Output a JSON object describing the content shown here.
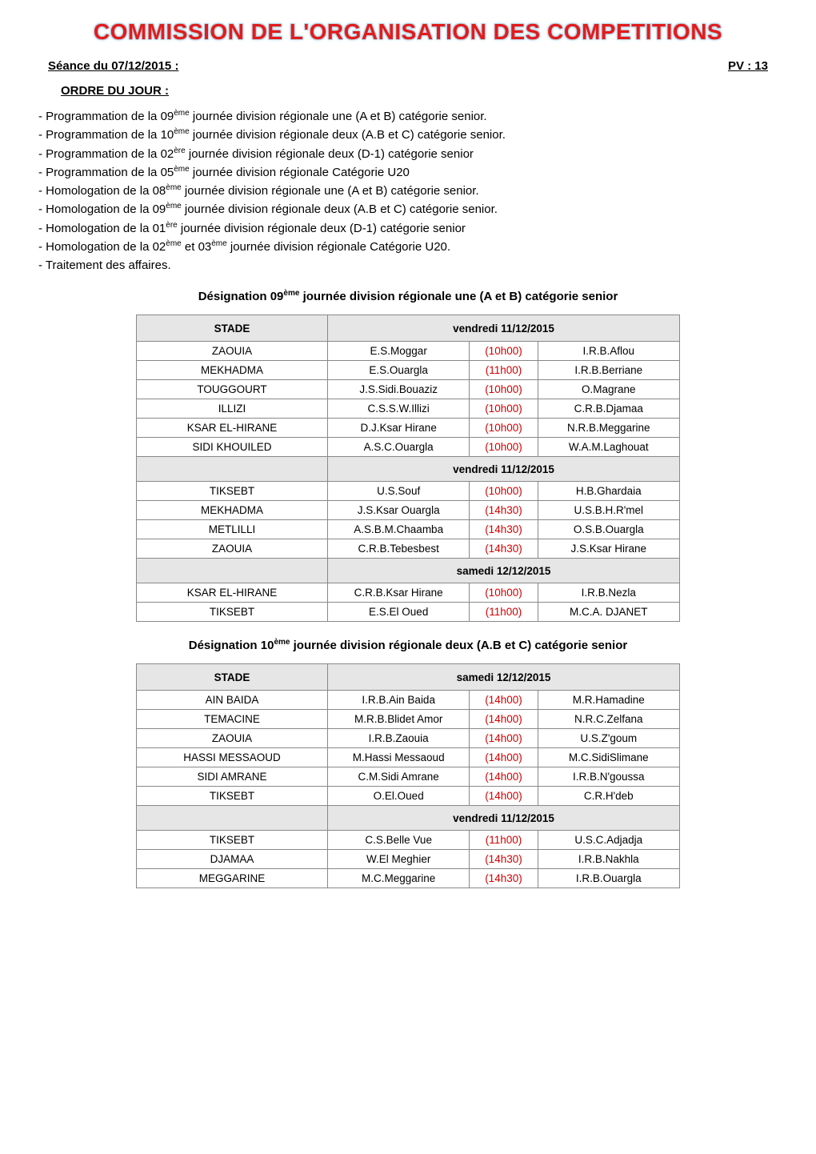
{
  "banner": "COMMISSION DE L'ORGANISATION DES COMPETITIONS",
  "seance_label": "Séance du 07/12/2015 :",
  "pv_label": "PV : 13",
  "ordre_label": "ORDRE DU JOUR :",
  "bullets": [
    "- Programmation de la 09<sup>ème</sup> journée division régionale une (A et B) catégorie senior.",
    "- Programmation de la 10<sup>ème</sup>  journée division régionale deux (A.B et C) catégorie senior.",
    "- Programmation de la 02<sup>ère</sup>  journée division régionale deux (D-1) catégorie senior",
    "- Programmation de la 05<sup>ème</sup>  journée division régionale Catégorie U20",
    "- Homologation de la 08<sup>ème</sup>  journée division régionale une (A et B) catégorie senior.",
    "- Homologation de la 09<sup>ème</sup>  journée division régionale deux (A.B et C) catégorie senior.",
    "- Homologation de la 01<sup>ère</sup>  journée division régionale deux (D-1) catégorie senior",
    "- Homologation de la 02<sup>ème</sup>  et 03<sup>ème</sup> journée division régionale Catégorie U20.",
    "- Traitement des affaires."
  ],
  "section1": {
    "heading": "Désignation 09<sup>ème</sup> journée division régionale une (A et B) catégorie senior",
    "stade_header": "STADE",
    "blocks": [
      {
        "date": "vendredi 11/12/2015",
        "rows": [
          [
            "ZAOUIA",
            "E.S.Moggar",
            "(10h00)",
            "I.R.B.Aflou"
          ],
          [
            "MEKHADMA",
            "E.S.Ouargla",
            "(11h00)",
            "I.R.B.Berriane"
          ],
          [
            "TOUGGOURT",
            "J.S.Sidi.Bouaziz",
            "(10h00)",
            "O.Magrane"
          ],
          [
            "ILLIZI",
            "C.S.S.W.Illizi",
            "(10h00)",
            "C.R.B.Djamaa"
          ],
          [
            "KSAR EL-HIRANE",
            "D.J.Ksar Hirane",
            "(10h00)",
            "N.R.B.Meggarine"
          ],
          [
            "SIDI KHOUILED",
            "A.S.C.Ouargla",
            "(10h00)",
            "W.A.M.Laghouat"
          ]
        ]
      },
      {
        "date": "vendredi 11/12/2015",
        "rows": [
          [
            "TIKSEBT",
            "U.S.Souf",
            "(10h00)",
            "H.B.Ghardaia"
          ],
          [
            "MEKHADMA",
            "J.S.Ksar Ouargla",
            "(14h30)",
            "U.S.B.H.R'mel"
          ],
          [
            "METLILLI",
            "A.S.B.M.Chaamba",
            "(14h30)",
            "O.S.B.Ouargla"
          ],
          [
            "ZAOUIA",
            "C.R.B.Tebesbest",
            "(14h30)",
            "J.S.Ksar Hirane"
          ]
        ]
      },
      {
        "date": "samedi 12/12/2015",
        "rows": [
          [
            "KSAR EL-HIRANE",
            "C.R.B.Ksar Hirane",
            "(10h00)",
            "I.R.B.Nezla"
          ],
          [
            "TIKSEBT",
            "E.S.El Oued",
            "(11h00)",
            "M.C.A. DJANET"
          ]
        ]
      }
    ]
  },
  "section2": {
    "heading": "Désignation 10<sup>ème</sup>  journée division régionale deux (A.B et C) catégorie senior",
    "stade_header": "STADE",
    "blocks": [
      {
        "date": "samedi 12/12/2015",
        "rows": [
          [
            "AIN BAIDA",
            "I.R.B.Ain Baida",
            "(14h00)",
            "M.R.Hamadine"
          ],
          [
            "TEMACINE",
            "M.R.B.Blidet Amor",
            "(14h00)",
            "N.R.C.Zelfana"
          ],
          [
            "ZAOUIA",
            "I.R.B.Zaouia",
            "(14h00)",
            "U.S.Z'goum"
          ],
          [
            "HASSI MESSAOUD",
            "M.Hassi Messaoud",
            "(14h00)",
            "M.C.SidiSlimane"
          ],
          [
            "SIDI AMRANE",
            "C.M.Sidi Amrane",
            "(14h00)",
            "I.R.B.N'goussa"
          ],
          [
            "TIKSEBT",
            "O.El.Oued",
            "(14h00)",
            "C.R.H'deb"
          ]
        ]
      },
      {
        "date": "vendredi 11/12/2015",
        "rows": [
          [
            "TIKSEBT",
            "C.S.Belle Vue",
            "(11h00)",
            "U.S.C.Adjadja"
          ],
          [
            "DJAMAA",
            "W.El Meghier",
            "(14h30)",
            "I.R.B.Nakhla"
          ],
          [
            "MEGGARINE",
            "M.C.Meggarine",
            "(14h30)",
            "I.R.B.Ouargla"
          ]
        ]
      }
    ]
  }
}
